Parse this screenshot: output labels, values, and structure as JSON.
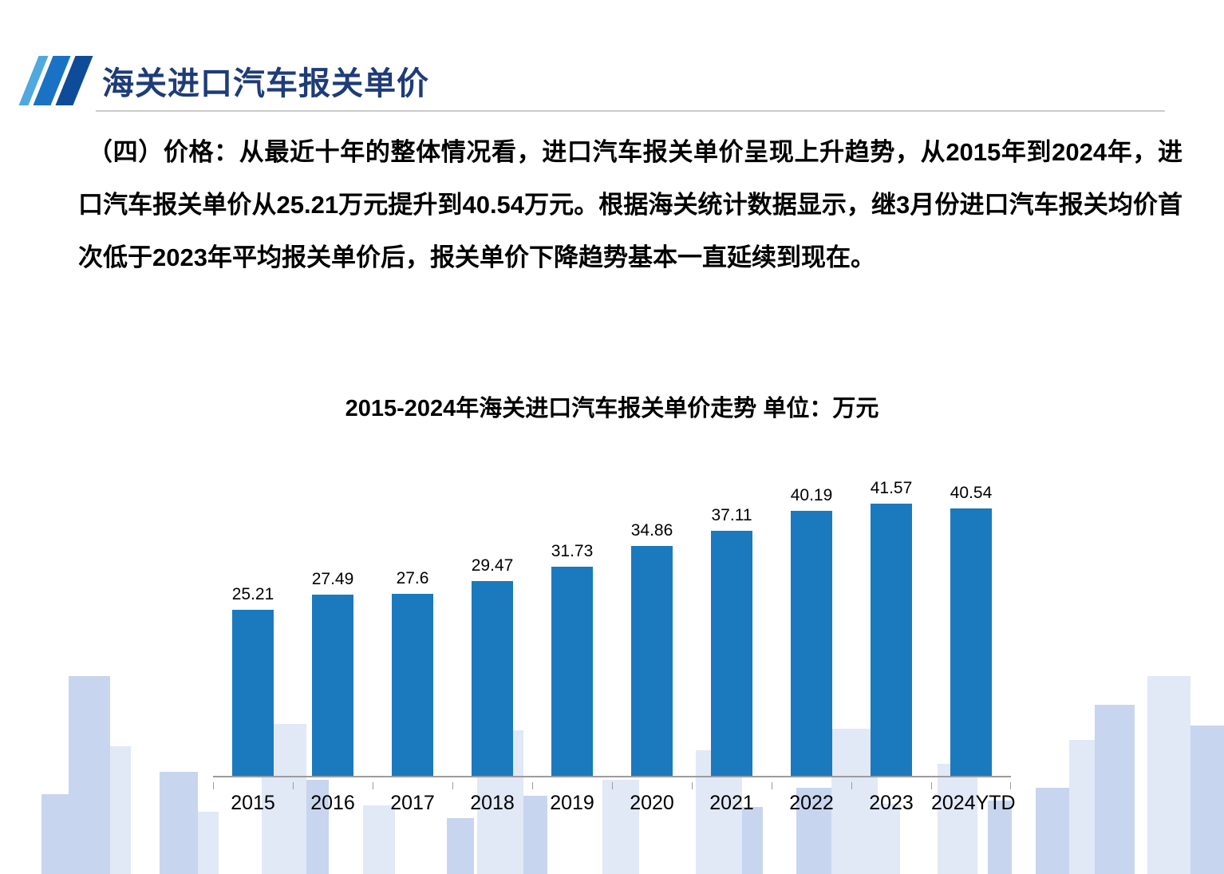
{
  "header": {
    "title": "海关进口汽车报关单价"
  },
  "body": {
    "paragraph": "（四）价格：从最近十年的整体情况看，进口汽车报关单价呈现上升趋势，从2015年到2024年，进口汽车报关单价从25.21万元提升到40.54万元。根据海关统计数据显示，继3月份进口汽车报关均价首次低于2023年平均报关单价后，报关单价下降趋势基本一直延续到现在。"
  },
  "chart_data": {
    "type": "bar",
    "title": "2015-2024年海关进口汽车报关单价走势  单位：万元",
    "categories": [
      "2015",
      "2016",
      "2017",
      "2018",
      "2019",
      "2020",
      "2021",
      "2022",
      "2023",
      "2024YTD"
    ],
    "values": [
      25.21,
      27.49,
      27.6,
      29.47,
      31.73,
      34.86,
      37.11,
      40.19,
      41.57,
      40.54
    ],
    "xlabel": "",
    "ylabel": "万元",
    "ylim": [
      0,
      45
    ],
    "grid": false,
    "legend": false,
    "value_labels": "above",
    "bar_color": "#1B79BD"
  },
  "colors": {
    "title_blue": "#1E3C78",
    "stripe_light": "#4FA8DE",
    "stripe_mid": "#1A72C4",
    "stripe_dark": "#0E4B99",
    "axis_gray": "#9C9C9C",
    "skyline_light": "#E1E8F6",
    "skyline_mid": "#C7D5EF"
  }
}
